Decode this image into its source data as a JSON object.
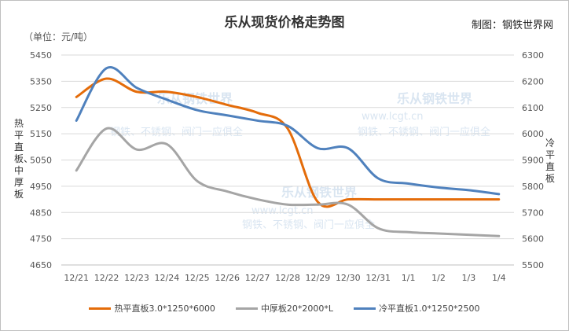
{
  "chart_data": {
    "type": "line",
    "title": "乐从现货价格走势图",
    "source": "制图：钢铁世界网",
    "unit_label": "（单位：元/吨）",
    "y_left_label": "热平直板、中厚板",
    "y_right_label": "冷平直板",
    "categories": [
      "12/21",
      "12/22",
      "12/23",
      "12/24",
      "12/25",
      "12/26",
      "12/27",
      "12/28",
      "12/29",
      "12/30",
      "12/31",
      "1/1",
      "1/2",
      "1/3",
      "1/4"
    ],
    "y_left": {
      "range": [
        4650,
        5450
      ],
      "ticks": [
        4650,
        4750,
        4850,
        4950,
        5050,
        5150,
        5250,
        5350,
        5450
      ]
    },
    "y_right": {
      "range": [
        5500,
        6300
      ],
      "ticks": [
        5500,
        5600,
        5700,
        5800,
        5900,
        6000,
        6100,
        6200,
        6300
      ]
    },
    "series": [
      {
        "name": "热平直板3.0*1250*6000",
        "axis": "left",
        "color": "#E46C0A",
        "values": [
          5290,
          5360,
          5310,
          5310,
          5290,
          5260,
          5230,
          5170,
          4890,
          4900,
          4900,
          4900,
          4900,
          4900,
          4900
        ]
      },
      {
        "name": "中厚板20*2000*L",
        "axis": "left",
        "color": "#A5A5A5",
        "values": [
          5010,
          5170,
          5090,
          5110,
          4970,
          4930,
          4900,
          4880,
          4880,
          4880,
          4790,
          4775,
          4770,
          4765,
          4760
        ]
      },
      {
        "name": "冷平直板1.0*1250*2500",
        "axis": "right",
        "color": "#4F81BD",
        "values": [
          6050,
          6250,
          6175,
          6130,
          6090,
          6070,
          6050,
          6030,
          5945,
          5945,
          5830,
          5810,
          5795,
          5785,
          5770
        ]
      }
    ],
    "watermarks": [
      "乐从钢铁世界",
      "钢铁、不锈钢、阀门一应俱全",
      "www.lcgt.cn"
    ],
    "grid": "horizontal",
    "legend_position": "bottom"
  }
}
